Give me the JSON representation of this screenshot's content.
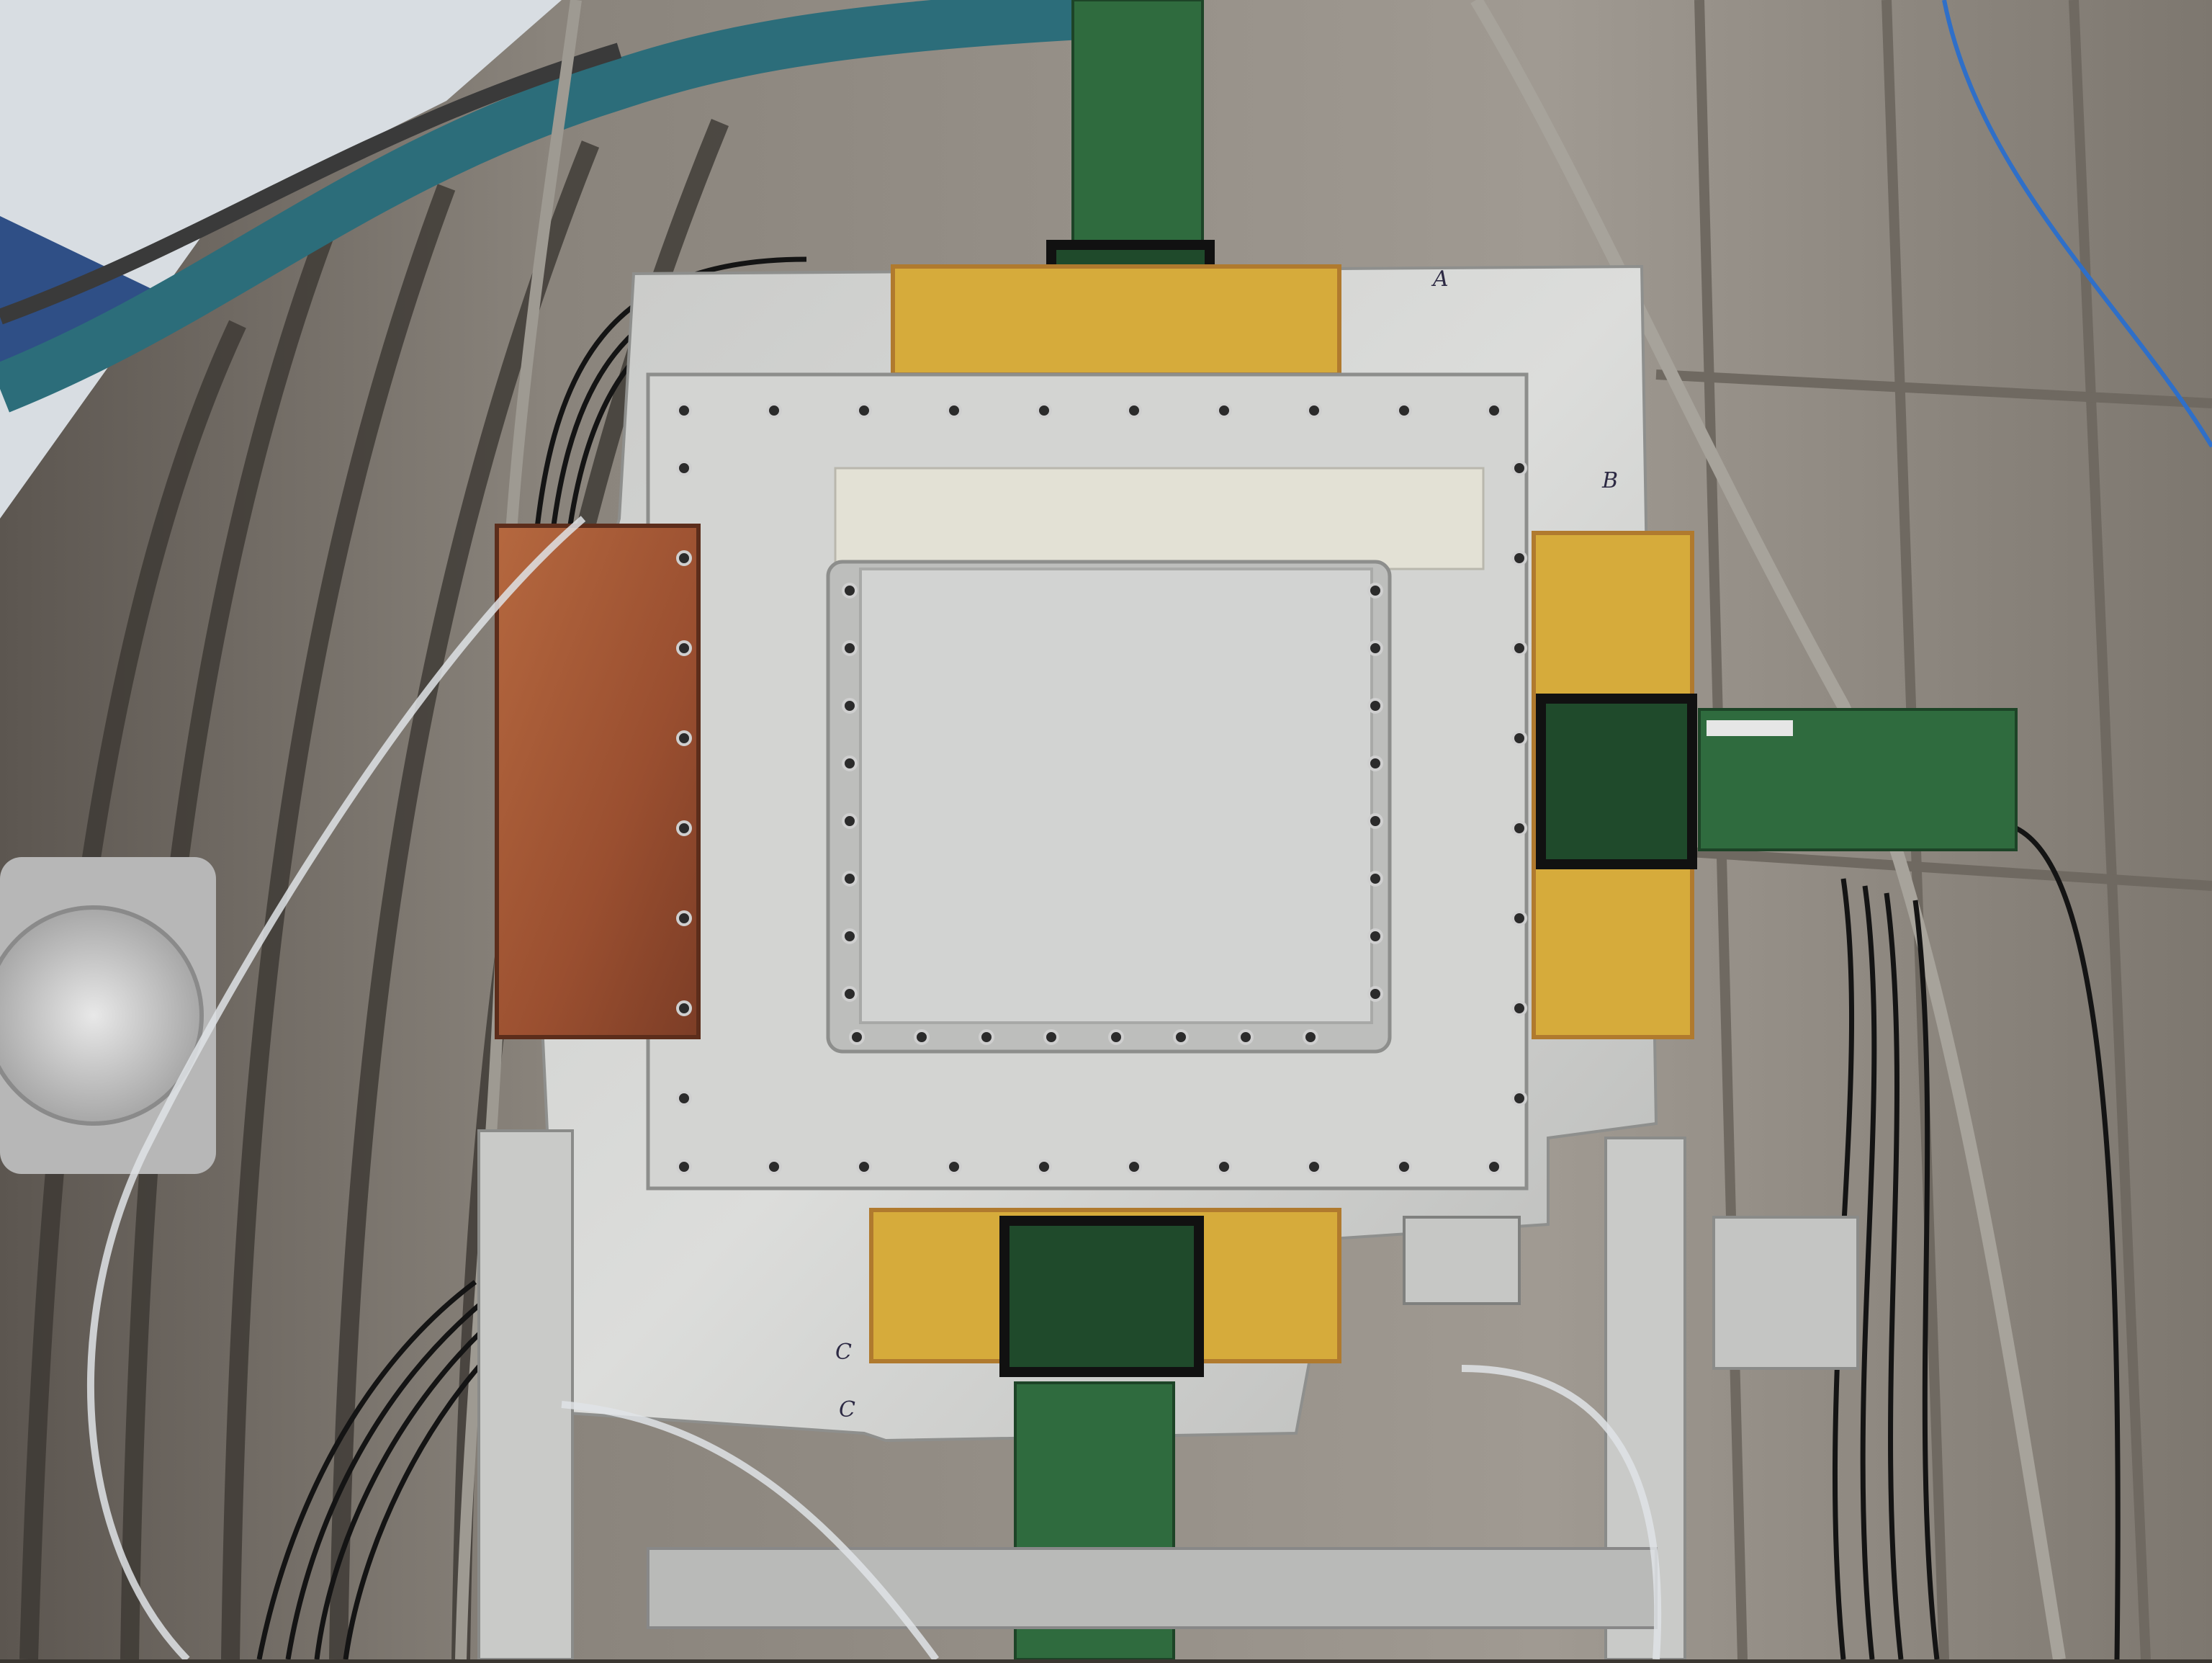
{
  "scene": {
    "markers": {
      "top": "A",
      "right": "B",
      "bottom_left": "C",
      "bottom_center": "C"
    },
    "colors": {
      "wall": "#9a948c",
      "plate": "#c9c9c6",
      "inner_plate": "#d7d8d8",
      "window": "#d0d0cf",
      "copper": "#a35a3a",
      "kapton": "#d6ab3b",
      "pcb": "#2f6b3e",
      "hose": "#2c6d7a",
      "cable": "#151515"
    }
  }
}
